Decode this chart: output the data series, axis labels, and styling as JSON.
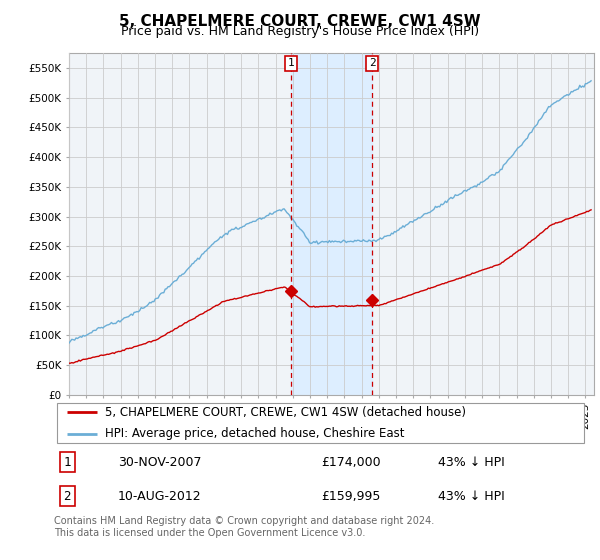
{
  "title": "5, CHAPELMERE COURT, CREWE, CW1 4SW",
  "subtitle": "Price paid vs. HM Land Registry's House Price Index (HPI)",
  "ylim": [
    0,
    575000
  ],
  "yticks": [
    0,
    50000,
    100000,
    150000,
    200000,
    250000,
    300000,
    350000,
    400000,
    450000,
    500000,
    550000
  ],
  "ytick_labels": [
    "£0",
    "£50K",
    "£100K",
    "£150K",
    "£200K",
    "£250K",
    "£300K",
    "£350K",
    "£400K",
    "£450K",
    "£500K",
    "£550K"
  ],
  "xlim_start": 1995.0,
  "xlim_end": 2025.5,
  "purchase1_date": 2007.917,
  "purchase1_price": 174000,
  "purchase1_label": "1",
  "purchase1_display": "30-NOV-2007",
  "purchase1_price_str": "£174,000",
  "purchase1_hpi": "43% ↓ HPI",
  "purchase2_date": 2012.62,
  "purchase2_price": 159995,
  "purchase2_label": "2",
  "purchase2_display": "10-AUG-2012",
  "purchase2_price_str": "£159,995",
  "purchase2_hpi": "43% ↓ HPI",
  "hpi_line_color": "#6baed6",
  "price_line_color": "#cc0000",
  "marker_color": "#cc0000",
  "grid_color": "#cccccc",
  "shade_color": "#ddeeff",
  "legend_line1": "5, CHAPELMERE COURT, CREWE, CW1 4SW (detached house)",
  "legend_line2": "HPI: Average price, detached house, Cheshire East",
  "footnote": "Contains HM Land Registry data © Crown copyright and database right 2024.\nThis data is licensed under the Open Government Licence v3.0.",
  "title_fontsize": 11,
  "subtitle_fontsize": 9,
  "tick_fontsize": 7.5,
  "legend_fontsize": 8.5,
  "footnote_fontsize": 7,
  "bg_color": "#f0f4f8"
}
